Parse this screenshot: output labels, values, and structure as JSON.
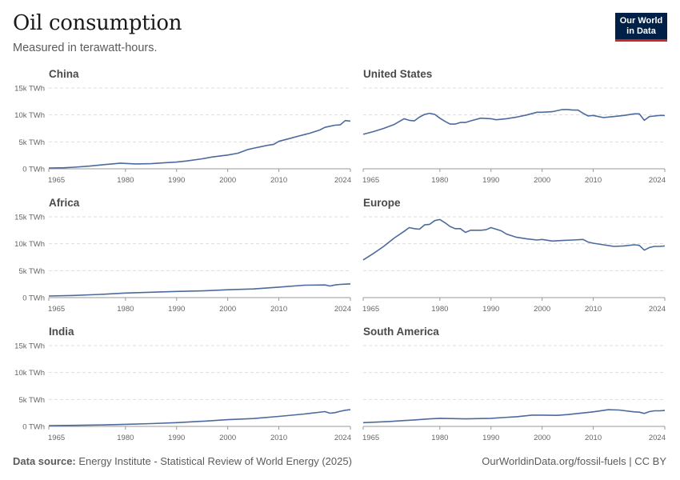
{
  "title": "Oil consumption",
  "subtitle": "Measured in terawatt-hours.",
  "logo": {
    "line1": "Our World",
    "line2": "in Data"
  },
  "footer": {
    "source_label": "Data source:",
    "source_text": "Energy Institute - Statistical Review of World Energy (2025)",
    "right_text": "OurWorldinData.org/fossil-fuels | CC BY"
  },
  "colors": {
    "line": "#4c6a9c",
    "brand": "#002147",
    "accent": "#ce261e"
  },
  "chart_data": [
    {
      "type": "line",
      "title": "China",
      "ylim": [
        0,
        15000
      ],
      "xlim": [
        1965,
        2024
      ],
      "yticks": [
        0,
        5000,
        10000,
        15000
      ],
      "ytick_labels": [
        "0 TWh",
        "5k TWh",
        "10k TWh",
        "15k TWh"
      ],
      "xticks": [
        1965,
        1980,
        1990,
        2000,
        2010,
        2024
      ],
      "series": [
        {
          "x": [
            1965,
            1968,
            1970,
            1973,
            1975,
            1978,
            1979,
            1980,
            1982,
            1985,
            1988,
            1990,
            1992,
            1995,
            1997,
            2000,
            2002,
            2004,
            2005,
            2007,
            2008,
            2009,
            2010,
            2012,
            2014,
            2016,
            2018,
            2019,
            2020,
            2021,
            2022,
            2023,
            2024
          ],
          "values": [
            150,
            200,
            300,
            500,
            700,
            950,
            1050,
            1000,
            900,
            950,
            1150,
            1250,
            1450,
            1850,
            2200,
            2550,
            2900,
            3600,
            3800,
            4200,
            4400,
            4550,
            5100,
            5600,
            6100,
            6600,
            7200,
            7700,
            7900,
            8100,
            8150,
            8950,
            8850
          ]
        }
      ]
    },
    {
      "type": "line",
      "title": "United States",
      "ylim": [
        0,
        15000
      ],
      "xlim": [
        1965,
        2024
      ],
      "yticks": [
        0,
        5000,
        10000,
        15000
      ],
      "ytick_labels": [
        "0 TWh",
        "5k TWh",
        "10k TWh",
        "15k TWh"
      ],
      "xticks": [
        1965,
        1980,
        1990,
        2000,
        2010,
        2024
      ],
      "series": [
        {
          "x": [
            1965,
            1967,
            1969,
            1971,
            1973,
            1974,
            1975,
            1976,
            1977,
            1978,
            1979,
            1980,
            1981,
            1982,
            1983,
            1984,
            1985,
            1986,
            1988,
            1990,
            1991,
            1993,
            1995,
            1997,
            1999,
            2000,
            2002,
            2004,
            2005,
            2006,
            2007,
            2008,
            2009,
            2010,
            2012,
            2014,
            2016,
            2018,
            2019,
            2020,
            2021,
            2022,
            2023,
            2024
          ],
          "values": [
            6400,
            6900,
            7500,
            8200,
            9300,
            9000,
            8900,
            9600,
            10100,
            10300,
            10100,
            9400,
            8800,
            8300,
            8300,
            8600,
            8600,
            8900,
            9400,
            9300,
            9100,
            9300,
            9600,
            10000,
            10500,
            10500,
            10600,
            11000,
            11000,
            10900,
            10900,
            10300,
            9800,
            9900,
            9500,
            9700,
            9900,
            10200,
            10200,
            9000,
            9700,
            9800,
            9900,
            9900
          ]
        }
      ]
    },
    {
      "type": "line",
      "title": "Africa",
      "ylim": [
        0,
        15000
      ],
      "xlim": [
        1965,
        2024
      ],
      "yticks": [
        0,
        5000,
        10000,
        15000
      ],
      "ytick_labels": [
        "0 TWh",
        "5k TWh",
        "10k TWh",
        "15k TWh"
      ],
      "xticks": [
        1965,
        1980,
        1990,
        2000,
        2010,
        2024
      ],
      "series": [
        {
          "x": [
            1965,
            1970,
            1975,
            1980,
            1985,
            1990,
            1995,
            2000,
            2005,
            2010,
            2015,
            2019,
            2020,
            2021,
            2022,
            2023,
            2024
          ],
          "values": [
            300,
            400,
            600,
            850,
            1000,
            1150,
            1250,
            1450,
            1600,
            1950,
            2300,
            2350,
            2150,
            2350,
            2450,
            2500,
            2550
          ]
        }
      ]
    },
    {
      "type": "line",
      "title": "Europe",
      "ylim": [
        0,
        15000
      ],
      "xlim": [
        1965,
        2024
      ],
      "yticks": [
        0,
        5000,
        10000,
        15000
      ],
      "ytick_labels": [
        "0 TWh",
        "5k TWh",
        "10k TWh",
        "15k TWh"
      ],
      "xticks": [
        1965,
        1980,
        1990,
        2000,
        2010,
        2024
      ],
      "series": [
        {
          "x": [
            1965,
            1967,
            1969,
            1971,
            1973,
            1974,
            1975,
            1976,
            1977,
            1978,
            1979,
            1980,
            1981,
            1982,
            1983,
            1984,
            1985,
            1986,
            1988,
            1989,
            1990,
            1991,
            1992,
            1993,
            1995,
            1997,
            1999,
            2000,
            2002,
            2004,
            2006,
            2008,
            2009,
            2010,
            2012,
            2014,
            2016,
            2018,
            2019,
            2020,
            2021,
            2022,
            2023,
            2024
          ],
          "values": [
            7000,
            8200,
            9500,
            11000,
            12300,
            13000,
            12800,
            12700,
            13500,
            13600,
            14300,
            14500,
            13900,
            13200,
            12800,
            12800,
            12100,
            12500,
            12500,
            12600,
            13000,
            12700,
            12400,
            11800,
            11200,
            10900,
            10700,
            10800,
            10500,
            10600,
            10700,
            10800,
            10300,
            10100,
            9800,
            9500,
            9600,
            9800,
            9700,
            8800,
            9300,
            9500,
            9500,
            9600
          ]
        }
      ]
    },
    {
      "type": "line",
      "title": "India",
      "ylim": [
        0,
        15000
      ],
      "xlim": [
        1965,
        2024
      ],
      "yticks": [
        0,
        5000,
        10000,
        15000
      ],
      "ytick_labels": [
        "0 TWh",
        "5k TWh",
        "10k TWh",
        "15k TWh"
      ],
      "xticks": [
        1965,
        1980,
        1990,
        2000,
        2010,
        2024
      ],
      "series": [
        {
          "x": [
            1965,
            1970,
            1975,
            1980,
            1985,
            1990,
            1995,
            2000,
            2005,
            2010,
            2015,
            2019,
            2020,
            2021,
            2022,
            2023,
            2024
          ],
          "values": [
            150,
            200,
            270,
            380,
            520,
            700,
            950,
            1250,
            1450,
            1850,
            2300,
            2750,
            2450,
            2550,
            2800,
            3000,
            3100
          ]
        }
      ]
    },
    {
      "type": "line",
      "title": "South America",
      "ylim": [
        0,
        15000
      ],
      "xlim": [
        1965,
        2024
      ],
      "yticks": [
        0,
        5000,
        10000,
        15000
      ],
      "ytick_labels": [
        "0 TWh",
        "5k TWh",
        "10k TWh",
        "15k TWh"
      ],
      "xticks": [
        1965,
        1980,
        1990,
        2000,
        2010,
        2024
      ],
      "series": [
        {
          "x": [
            1965,
            1970,
            1975,
            1978,
            1980,
            1982,
            1985,
            1990,
            1995,
            1998,
            2000,
            2003,
            2005,
            2008,
            2010,
            2013,
            2015,
            2018,
            2019,
            2020,
            2021,
            2022,
            2023,
            2024
          ],
          "values": [
            700,
            900,
            1200,
            1400,
            1500,
            1450,
            1400,
            1500,
            1800,
            2100,
            2100,
            2050,
            2200,
            2500,
            2700,
            3100,
            3050,
            2700,
            2650,
            2400,
            2750,
            2900,
            2900,
            2950
          ]
        }
      ]
    }
  ]
}
